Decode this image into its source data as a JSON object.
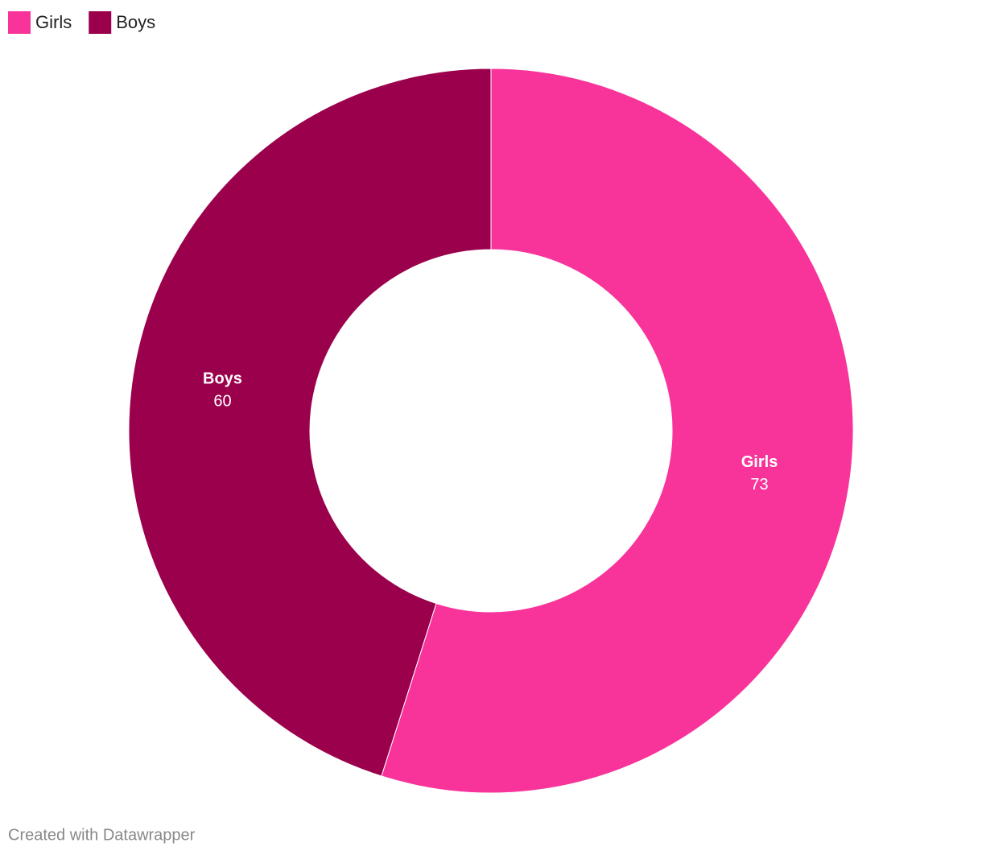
{
  "chart_data": {
    "type": "donut",
    "categories": [
      "Girls",
      "Boys"
    ],
    "values": [
      73,
      60
    ],
    "colors": [
      "#f8349b",
      "#9b004d"
    ],
    "legend": "top-left",
    "credit": "Created with Datawrapper"
  }
}
